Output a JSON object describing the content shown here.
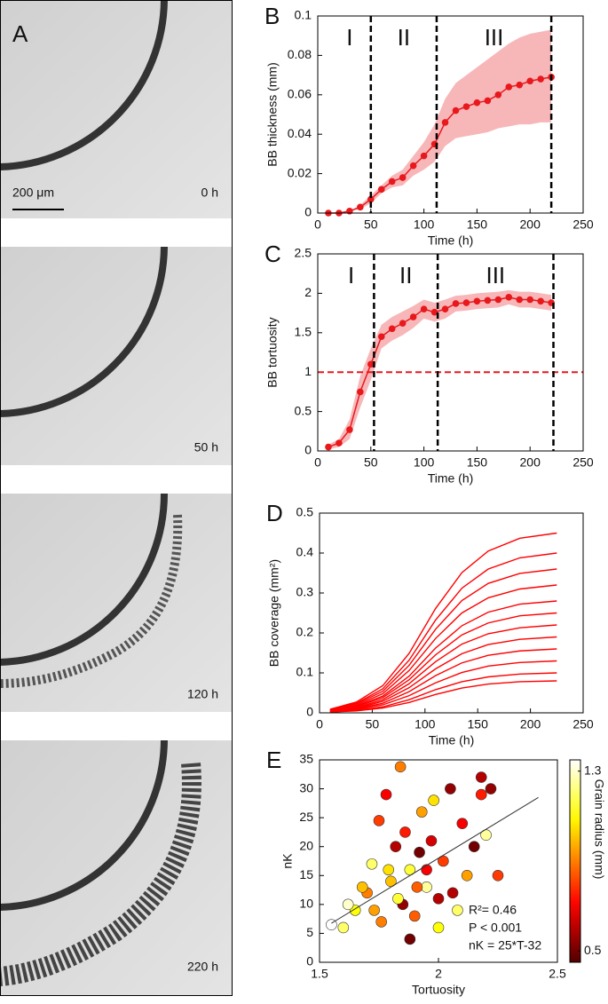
{
  "panel_a": {
    "letter": "A",
    "scale_bar": "200 μm",
    "times": [
      "0 h",
      "50 h",
      "120 h",
      "220 h"
    ]
  },
  "chart_data": [
    {
      "type": "line",
      "panel": "B",
      "xlabel": "Time (h)",
      "ylabel": "BB thickness (mm)",
      "color": "#e8181c",
      "band_color": "#f7b7b9",
      "x": [
        10,
        20,
        30,
        40,
        50,
        60,
        70,
        80,
        90,
        100,
        110,
        120,
        130,
        140,
        150,
        160,
        170,
        180,
        190,
        200,
        210,
        220
      ],
      "values": [
        0,
        0,
        0.001,
        0.003,
        0.007,
        0.012,
        0.016,
        0.018,
        0.024,
        0.029,
        0.035,
        0.046,
        0.052,
        0.054,
        0.056,
        0.057,
        0.06,
        0.064,
        0.065,
        0.067,
        0.068,
        0.069
      ],
      "upper": [
        0,
        0,
        0.001,
        0.004,
        0.009,
        0.014,
        0.019,
        0.022,
        0.029,
        0.036,
        0.045,
        0.058,
        0.066,
        0.07,
        0.074,
        0.078,
        0.082,
        0.086,
        0.089,
        0.091,
        0.092,
        0.093
      ],
      "lower": [
        0,
        0,
        0.001,
        0.002,
        0.005,
        0.01,
        0.013,
        0.014,
        0.019,
        0.022,
        0.026,
        0.034,
        0.038,
        0.039,
        0.04,
        0.041,
        0.043,
        0.044,
        0.045,
        0.045,
        0.046,
        0.046
      ],
      "phase_bounds": [
        50,
        112,
        220
      ],
      "phase_labels": [
        "I",
        "II",
        "III"
      ],
      "xlim": [
        0,
        250
      ],
      "xticks": [
        0,
        50,
        100,
        150,
        200,
        250
      ],
      "ylim": [
        0,
        0.1
      ],
      "yticks": [
        0,
        0.02,
        0.04,
        0.06,
        0.08,
        0.1
      ]
    },
    {
      "type": "line",
      "panel": "C",
      "xlabel": "Time (h)",
      "ylabel": "BB tortuosity",
      "color": "#e8181c",
      "band_color": "#f7b7b9",
      "x": [
        10,
        20,
        30,
        40,
        50,
        60,
        70,
        80,
        90,
        100,
        110,
        120,
        130,
        140,
        150,
        160,
        170,
        180,
        190,
        200,
        210,
        220
      ],
      "values": [
        0.05,
        0.1,
        0.27,
        0.75,
        1.1,
        1.45,
        1.55,
        1.62,
        1.7,
        1.8,
        1.76,
        1.8,
        1.87,
        1.88,
        1.9,
        1.91,
        1.92,
        1.95,
        1.92,
        1.92,
        1.9,
        1.88
      ],
      "upper": [
        0.08,
        0.15,
        0.4,
        0.95,
        1.3,
        1.6,
        1.7,
        1.77,
        1.84,
        1.92,
        1.88,
        1.92,
        1.97,
        1.98,
        2.0,
        2.01,
        2.02,
        2.04,
        2.02,
        2.02,
        2.0,
        1.98
      ],
      "lower": [
        0.02,
        0.05,
        0.15,
        0.55,
        0.9,
        1.3,
        1.4,
        1.47,
        1.56,
        1.68,
        1.64,
        1.68,
        1.77,
        1.78,
        1.8,
        1.81,
        1.82,
        1.86,
        1.82,
        1.82,
        1.8,
        1.78
      ],
      "reference_line": 1,
      "reference_color": "#e8181c",
      "phase_bounds": [
        53,
        113,
        222
      ],
      "phase_labels": [
        "I",
        "II",
        "III"
      ],
      "xlim": [
        0,
        250
      ],
      "xticks": [
        0,
        50,
        100,
        150,
        200,
        250
      ],
      "ylim": [
        0,
        2.5
      ],
      "yticks": [
        0,
        0.5,
        1,
        1.5,
        2,
        2.5
      ]
    },
    {
      "type": "line",
      "panel": "D",
      "xlabel": "Time (h)",
      "ylabel": "BB coverage (mm²)",
      "color": "#ff0000",
      "x": [
        10,
        35,
        60,
        85,
        110,
        135,
        160,
        190,
        225
      ],
      "series": [
        {
          "values": [
            0.009,
            0.027,
            0.068,
            0.149,
            0.261,
            0.351,
            0.405,
            0.437,
            0.45
          ]
        },
        {
          "values": [
            0.008,
            0.024,
            0.06,
            0.132,
            0.232,
            0.312,
            0.36,
            0.388,
            0.4
          ]
        },
        {
          "values": [
            0.007,
            0.022,
            0.054,
            0.119,
            0.209,
            0.281,
            0.324,
            0.349,
            0.36
          ]
        },
        {
          "values": [
            0.006,
            0.019,
            0.048,
            0.106,
            0.186,
            0.25,
            0.288,
            0.31,
            0.32
          ]
        },
        {
          "values": [
            0.006,
            0.017,
            0.042,
            0.092,
            0.162,
            0.218,
            0.252,
            0.272,
            0.28
          ]
        },
        {
          "values": [
            0.005,
            0.015,
            0.038,
            0.083,
            0.145,
            0.195,
            0.225,
            0.243,
            0.25
          ]
        },
        {
          "values": [
            0.004,
            0.013,
            0.033,
            0.073,
            0.128,
            0.172,
            0.198,
            0.213,
            0.22
          ]
        },
        {
          "values": [
            0.004,
            0.011,
            0.029,
            0.063,
            0.11,
            0.148,
            0.171,
            0.184,
            0.19
          ]
        },
        {
          "values": [
            0.003,
            0.01,
            0.024,
            0.053,
            0.093,
            0.125,
            0.144,
            0.155,
            0.16
          ]
        },
        {
          "values": [
            0.003,
            0.008,
            0.02,
            0.043,
            0.075,
            0.101,
            0.117,
            0.126,
            0.13
          ]
        },
        {
          "values": [
            0.002,
            0.006,
            0.015,
            0.033,
            0.058,
            0.078,
            0.09,
            0.097,
            0.1
          ]
        },
        {
          "values": [
            0.002,
            0.005,
            0.012,
            0.026,
            0.046,
            0.062,
            0.072,
            0.078,
            0.08
          ]
        }
      ],
      "xlim": [
        0,
        250
      ],
      "xticks": [
        0,
        50,
        100,
        150,
        200,
        250
      ],
      "ylim": [
        0,
        0.5
      ],
      "yticks": [
        0,
        0.1,
        0.2,
        0.3,
        0.4,
        0.5
      ]
    },
    {
      "type": "scatter",
      "panel": "E",
      "xlabel": "Tortuosity",
      "ylabel": "nK",
      "colorbar_label": "Grain radius (mm)",
      "x": [
        1.55,
        1.6,
        1.65,
        1.7,
        1.72,
        1.75,
        1.78,
        1.8,
        1.82,
        1.84,
        1.85,
        1.86,
        1.88,
        1.9,
        1.92,
        1.93,
        1.95,
        1.97,
        1.98,
        2.0,
        2.02,
        2.05,
        2.08,
        2.1,
        2.12,
        2.15,
        2.18,
        2.2,
        2.22,
        2.25,
        2.18,
        1.68,
        1.62,
        1.76,
        1.88,
        2.0,
        1.95,
        1.83,
        1.73,
        2.06,
        1.91,
        1.79
      ],
      "values": [
        6.5,
        6,
        9,
        12,
        17,
        24.5,
        29,
        14,
        20,
        33.8,
        10,
        22.5,
        16,
        8,
        19,
        26,
        13,
        21,
        28,
        11,
        17.5,
        30,
        9,
        24,
        15,
        20,
        29,
        22,
        30,
        15,
        32,
        13,
        10,
        7,
        4,
        6,
        16,
        11,
        9,
        12,
        13,
        16
      ],
      "grain_radius": [
        1.35,
        1.2,
        1.1,
        0.9,
        1.2,
        0.8,
        0.7,
        1.0,
        0.6,
        0.9,
        0.55,
        0.75,
        1.15,
        0.85,
        0.5,
        0.95,
        1.25,
        0.65,
        1.05,
        0.6,
        0.8,
        0.55,
        1.2,
        0.7,
        0.95,
        0.5,
        0.75,
        1.25,
        0.55,
        0.8,
        0.6,
        1.0,
        1.3,
        0.9,
        0.5,
        1.1,
        0.7,
        1.15,
        0.95,
        0.6,
        0.85,
        1.05
      ],
      "fit_x": [
        1.55,
        2.42
      ],
      "fit_y": [
        6.75,
        28.5
      ],
      "annotations": [
        "R²= 0.46",
        "P < 0.001",
        "nK = 25*T-32"
      ],
      "clim": [
        0.45,
        1.35
      ],
      "cticks": [
        0.5,
        1.3
      ],
      "xlim": [
        1.5,
        2.5
      ],
      "xticks": [
        1.5,
        2,
        2.5
      ],
      "ylim": [
        0,
        35
      ],
      "yticks": [
        0,
        5,
        10,
        15,
        20,
        25,
        30,
        35
      ]
    }
  ]
}
